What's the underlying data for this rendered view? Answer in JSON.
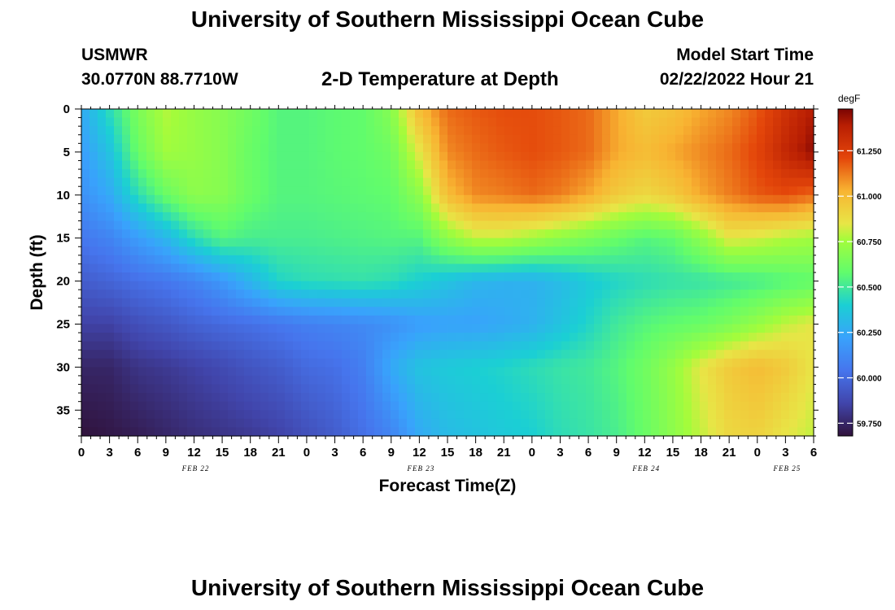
{
  "header": {
    "title": "University of Southern Mississippi Ocean Cube",
    "station": "USMWR",
    "coordinates": "30.0770N  88.7710W",
    "subtitle": "2-D Temperature at Depth",
    "model_start_label": "Model Start Time",
    "model_start_value": "02/22/2022 Hour 21"
  },
  "footer": {
    "title": "University of Southern Mississippi Ocean Cube"
  },
  "chart_data": {
    "type": "heatmap",
    "title": "2-D Temperature at Depth",
    "xlabel": "Forecast Time(Z)",
    "ylabel": "Depth (ft)",
    "x_range_hours": [
      0,
      78
    ],
    "y_range_ft": [
      0,
      38
    ],
    "x_tick_labels": [
      "0",
      "3",
      "6",
      "9",
      "12",
      "15",
      "18",
      "21",
      "0",
      "3",
      "6",
      "9",
      "12",
      "15",
      "18",
      "21",
      "0",
      "3",
      "6",
      "9",
      "12",
      "15",
      "18",
      "21",
      "0",
      "3",
      "6"
    ],
    "y_ticks": [
      0,
      5,
      10,
      15,
      20,
      25,
      30,
      35
    ],
    "y_tick_labels": [
      "0",
      "5",
      "10",
      "15",
      "20",
      "25",
      "30",
      "35"
    ],
    "date_labels": [
      {
        "label": "FEB 22",
        "hour": 12
      },
      {
        "label": "FEB 23",
        "hour": 36
      },
      {
        "label": "FEB 24",
        "hour": 60
      },
      {
        "label": "FEB 25",
        "hour": 75
      }
    ],
    "colorbar": {
      "unit": "degF",
      "min": 59.68,
      "max": 61.48,
      "ticks": [
        59.75,
        60.0,
        60.25,
        60.5,
        60.75,
        61.0,
        61.25
      ],
      "tick_labels": [
        "59.750",
        "60.000",
        "60.250",
        "60.500",
        "60.750",
        "61.000",
        "61.250"
      ]
    },
    "profiles": {
      "depths_ft": [
        0,
        5,
        10,
        15,
        20,
        25,
        30,
        38
      ],
      "times_hours": [
        0,
        3,
        6,
        9,
        12,
        15,
        18,
        21,
        24,
        27,
        30,
        33,
        36,
        39,
        42,
        45,
        48,
        51,
        54,
        57,
        60,
        63,
        66,
        69,
        72,
        75,
        78
      ],
      "values_degF": [
        [
          60.25,
          60.2,
          60.15,
          60.05,
          59.95,
          59.85,
          59.75,
          59.68
        ],
        [
          60.45,
          60.35,
          60.25,
          60.1,
          59.98,
          59.85,
          59.75,
          59.7
        ],
        [
          60.65,
          60.6,
          60.45,
          60.2,
          60.02,
          59.9,
          59.8,
          59.72
        ],
        [
          60.78,
          60.75,
          60.6,
          60.3,
          60.05,
          59.93,
          59.82,
          59.75
        ],
        [
          60.72,
          60.72,
          60.7,
          60.45,
          60.1,
          59.97,
          59.85,
          59.78
        ],
        [
          60.68,
          60.68,
          60.68,
          60.55,
          60.18,
          60.0,
          59.88,
          59.8
        ],
        [
          60.62,
          60.6,
          60.6,
          60.52,
          60.3,
          60.02,
          59.92,
          59.82
        ],
        [
          60.55,
          60.55,
          60.55,
          60.52,
          60.42,
          60.05,
          59.95,
          59.85
        ],
        [
          60.55,
          60.55,
          60.55,
          60.52,
          60.45,
          60.08,
          60.0,
          59.9
        ],
        [
          60.57,
          60.57,
          60.56,
          60.53,
          60.46,
          60.1,
          60.02,
          59.95
        ],
        [
          60.58,
          60.58,
          60.57,
          60.54,
          60.47,
          60.12,
          60.08,
          60.02
        ],
        [
          60.68,
          60.62,
          60.58,
          60.55,
          60.45,
          60.15,
          60.25,
          60.1
        ],
        [
          61.0,
          60.85,
          60.7,
          60.55,
          60.4,
          60.2,
          60.35,
          60.25
        ],
        [
          61.15,
          61.1,
          61.0,
          60.7,
          60.35,
          60.22,
          60.38,
          60.32
        ],
        [
          61.18,
          61.15,
          61.1,
          60.8,
          60.3,
          60.22,
          60.4,
          60.35
        ],
        [
          61.2,
          61.18,
          61.12,
          60.8,
          60.28,
          60.25,
          60.42,
          60.38
        ],
        [
          61.2,
          61.2,
          61.15,
          60.75,
          60.28,
          60.28,
          60.45,
          60.4
        ],
        [
          61.18,
          61.18,
          61.12,
          60.7,
          60.32,
          60.35,
          60.48,
          60.45
        ],
        [
          61.15,
          61.15,
          61.05,
          60.65,
          60.38,
          60.42,
          60.5,
          60.48
        ],
        [
          61.05,
          61.05,
          60.95,
          60.6,
          60.42,
          60.5,
          60.55,
          60.52
        ],
        [
          60.95,
          61.0,
          60.9,
          60.55,
          60.45,
          60.55,
          60.62,
          60.6
        ],
        [
          60.98,
          61.05,
          60.95,
          60.58,
          60.47,
          60.58,
          60.72,
          60.7
        ],
        [
          61.05,
          61.1,
          61.05,
          60.7,
          60.48,
          60.6,
          60.85,
          60.8
        ],
        [
          61.1,
          61.15,
          61.12,
          60.85,
          60.5,
          60.65,
          60.95,
          60.9
        ],
        [
          61.18,
          61.22,
          61.18,
          60.82,
          60.52,
          60.72,
          61.0,
          60.92
        ],
        [
          61.3,
          61.35,
          61.2,
          60.78,
          60.55,
          60.8,
          60.95,
          60.85
        ],
        [
          61.4,
          61.45,
          61.15,
          60.75,
          60.58,
          60.85,
          60.85,
          60.8
        ]
      ]
    }
  }
}
